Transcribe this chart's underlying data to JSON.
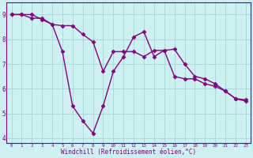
{
  "hours": [
    0,
    1,
    2,
    3,
    4,
    5,
    6,
    7,
    8,
    9,
    10,
    11,
    12,
    13,
    14,
    15,
    16,
    17,
    18,
    19,
    20,
    21,
    22,
    23
  ],
  "line1": [
    9.0,
    9.0,
    9.0,
    8.8,
    8.6,
    7.5,
    5.3,
    4.7,
    4.2,
    5.3,
    6.7,
    7.3,
    8.1,
    8.3,
    7.3,
    7.55,
    7.6,
    7.0,
    6.5,
    6.4,
    6.2,
    5.9,
    5.6,
    5.55
  ],
  "line2": [
    9.0,
    9.0,
    8.85,
    8.85,
    8.6,
    8.55,
    8.55,
    8.2,
    7.9,
    6.7,
    7.5,
    7.5,
    7.5,
    7.3,
    7.55,
    7.55,
    6.5,
    6.4,
    6.4,
    6.2,
    6.1,
    5.9,
    5.6,
    5.5
  ],
  "color": "#800080",
  "bg_color": "#cdf0f0",
  "grid_color": "#a8dada",
  "xlabel": "Windchill (Refroidissement éolien,°C)",
  "ylim": [
    3.8,
    9.5
  ],
  "xlim": [
    -0.5,
    23.5
  ],
  "yticks": [
    4,
    5,
    6,
    7,
    8,
    9
  ],
  "xticks": [
    0,
    1,
    2,
    3,
    4,
    5,
    6,
    7,
    8,
    9,
    10,
    11,
    12,
    13,
    14,
    15,
    16,
    17,
    18,
    19,
    20,
    21,
    22,
    23
  ],
  "marker": "D",
  "markersize": 2.5,
  "linewidth": 1.0,
  "tick_color": "#800080",
  "spine_color": "#800080"
}
